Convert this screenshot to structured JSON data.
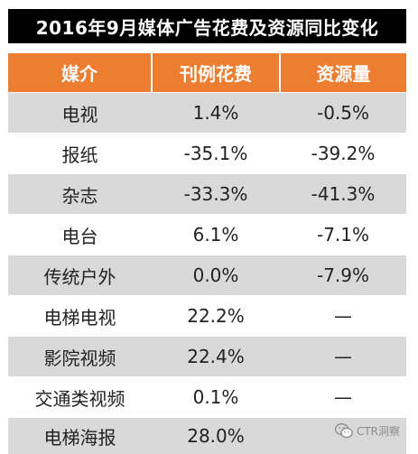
{
  "title": "2016年9月媒体广告花费及资源同比变化",
  "table": {
    "headers": [
      "媒介",
      "刊例花费",
      "资源量"
    ],
    "rows": [
      [
        "电视",
        "1.4%",
        "-0.5%"
      ],
      [
        "报纸",
        "-35.1%",
        "-39.2%"
      ],
      [
        "杂志",
        "-33.3%",
        "-41.3%"
      ],
      [
        "电台",
        "6.1%",
        "-7.1%"
      ],
      [
        "传统户外",
        "0.0%",
        "-7.9%"
      ],
      [
        "电梯电视",
        "22.2%",
        "—"
      ],
      [
        "影院视频",
        "22.4%",
        "—"
      ],
      [
        "交通类视频",
        "0.1%",
        "—"
      ],
      [
        "电梯海报",
        "28.0%",
        ""
      ]
    ]
  },
  "watermark": {
    "text": "CTR洞察",
    "icon": "wechat-icon"
  },
  "colors": {
    "title_bg": "#000000",
    "header_bg": "#ec7d31",
    "row_stripe": "#d9d9d9"
  }
}
